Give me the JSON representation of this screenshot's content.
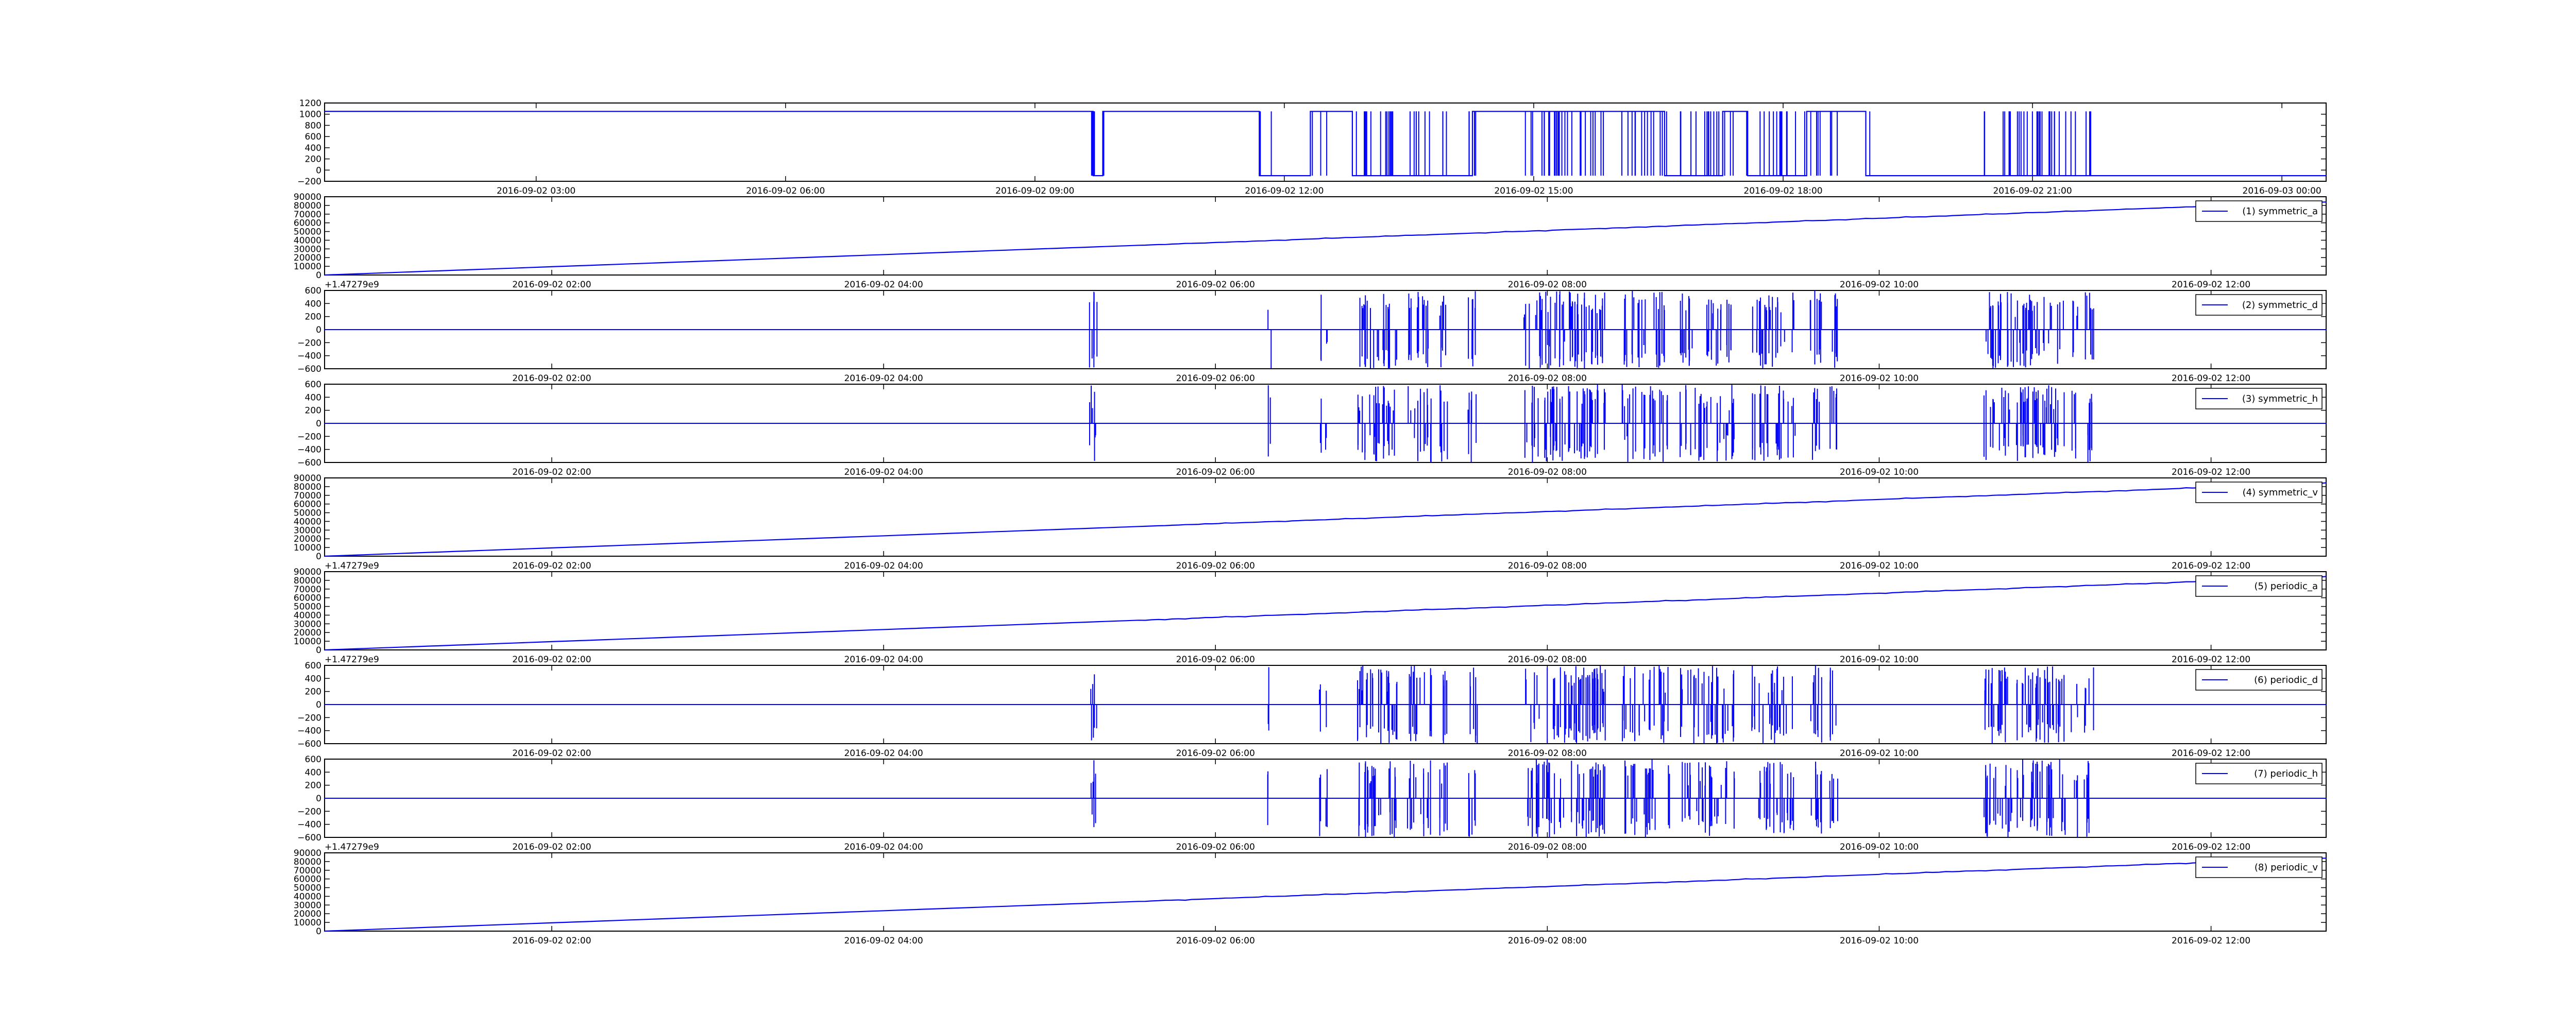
{
  "figure": {
    "line_color": "#0000ff"
  },
  "chart_data": [
    {
      "type": "line",
      "legend": "",
      "offset_label": "",
      "ylim": [
        -200,
        1200
      ],
      "yticks": [
        -200,
        0,
        200,
        400,
        600,
        800,
        1000,
        1200
      ],
      "xticklabels": [
        "2016-09-02 03:00",
        "2016-09-02 06:00",
        "2016-09-02 09:00",
        "2016-09-02 12:00",
        "2016-09-02 15:00",
        "2016-09-02 18:00",
        "2016-09-02 21:00",
        "2016-09-03 00:00"
      ],
      "signal": {
        "kind": "square",
        "high": 1050,
        "low": -100,
        "switches": [
          [
            0.384,
            0.3888,
            0.467,
            0.4925,
            0.5135,
            0.5735,
            0.6695,
            0.6985,
            0.711,
            0.7405,
            0.77
          ],
          [
            0.3835,
            0.3893,
            0.4675,
            0.4935,
            0.5155,
            0.5745,
            0.6705,
            0.6995,
            0.7105,
            0.7395,
            0.772
          ]
        ]
      }
    },
    {
      "type": "line",
      "legend": "(1) symmetric_a",
      "offset_label": "+1.47279e9",
      "ylim": [
        0,
        90000
      ],
      "yticks": [
        0,
        10000,
        20000,
        30000,
        40000,
        50000,
        60000,
        70000,
        80000,
        90000
      ],
      "xticklabels": [
        "2016-09-02 02:00",
        "2016-09-02 04:00",
        "2016-09-02 06:00",
        "2016-09-02 08:00",
        "2016-09-02 10:00",
        "2016-09-02 12:00"
      ],
      "signal": {
        "kind": "ramp",
        "start": 0,
        "end": 84000
      }
    },
    {
      "type": "line",
      "legend": "(2) symmetric_d",
      "offset_label": "",
      "ylim": [
        -600,
        600
      ],
      "yticks": [
        -600,
        -400,
        -200,
        0,
        200,
        400,
        600
      ],
      "xticklabels": [
        "2016-09-02 02:00",
        "2016-09-02 04:00",
        "2016-09-02 06:00",
        "2016-09-02 08:00",
        "2016-09-02 10:00",
        "2016-09-02 12:00"
      ],
      "signal": {
        "kind": "spikes",
        "amplitude": 600
      }
    },
    {
      "type": "line",
      "legend": "(3) symmetric_h",
      "offset_label": "",
      "ylim": [
        -600,
        600
      ],
      "yticks": [
        -600,
        -400,
        -200,
        0,
        200,
        400,
        600
      ],
      "xticklabels": [
        "2016-09-02 02:00",
        "2016-09-02 04:00",
        "2016-09-02 06:00",
        "2016-09-02 08:00",
        "2016-09-02 10:00",
        "2016-09-02 12:00"
      ],
      "signal": {
        "kind": "spikes",
        "amplitude": 600
      }
    },
    {
      "type": "line",
      "legend": "(4) symmetric_v",
      "offset_label": "+1.47279e9",
      "ylim": [
        0,
        90000
      ],
      "yticks": [
        0,
        10000,
        20000,
        30000,
        40000,
        50000,
        60000,
        70000,
        80000,
        90000
      ],
      "xticklabels": [
        "2016-09-02 02:00",
        "2016-09-02 04:00",
        "2016-09-02 06:00",
        "2016-09-02 08:00",
        "2016-09-02 10:00",
        "2016-09-02 12:00"
      ],
      "signal": {
        "kind": "ramp",
        "start": 0,
        "end": 84000
      }
    },
    {
      "type": "line",
      "legend": "(5) periodic_a",
      "offset_label": "+1.47279e9",
      "ylim": [
        0,
        90000
      ],
      "yticks": [
        0,
        10000,
        20000,
        30000,
        40000,
        50000,
        60000,
        70000,
        80000,
        90000
      ],
      "xticklabels": [
        "2016-09-02 02:00",
        "2016-09-02 04:00",
        "2016-09-02 06:00",
        "2016-09-02 08:00",
        "2016-09-02 10:00",
        "2016-09-02 12:00"
      ],
      "signal": {
        "kind": "ramp",
        "start": 0,
        "end": 84000
      }
    },
    {
      "type": "line",
      "legend": "(6) periodic_d",
      "offset_label": "",
      "ylim": [
        -600,
        600
      ],
      "yticks": [
        -600,
        -400,
        -200,
        0,
        200,
        400,
        600
      ],
      "xticklabels": [
        "2016-09-02 02:00",
        "2016-09-02 04:00",
        "2016-09-02 06:00",
        "2016-09-02 08:00",
        "2016-09-02 10:00",
        "2016-09-02 12:00"
      ],
      "signal": {
        "kind": "spikes",
        "amplitude": 600
      }
    },
    {
      "type": "line",
      "legend": "(7) periodic_h",
      "offset_label": "+1.47279e9",
      "ylim": [
        -600,
        600
      ],
      "yticks": [
        -600,
        -400,
        -200,
        0,
        200,
        400,
        600
      ],
      "xticklabels": [
        "2016-09-02 02:00",
        "2016-09-02 04:00",
        "2016-09-02 06:00",
        "2016-09-02 08:00",
        "2016-09-02 10:00",
        "2016-09-02 12:00"
      ],
      "signal": {
        "kind": "spikes",
        "amplitude": 600
      }
    },
    {
      "type": "line",
      "legend": "(8) periodic_v",
      "offset_label": "",
      "ylim": [
        0,
        90000
      ],
      "yticks": [
        0,
        10000,
        20000,
        30000,
        40000,
        50000,
        60000,
        70000,
        80000,
        90000
      ],
      "xticklabels": [
        "2016-09-02 02:00",
        "2016-09-02 04:00",
        "2016-09-02 06:00",
        "2016-09-02 08:00",
        "2016-09-02 10:00",
        "2016-09-02 12:00"
      ],
      "signal": {
        "kind": "ramp",
        "start": 0,
        "end": 84000
      }
    }
  ]
}
